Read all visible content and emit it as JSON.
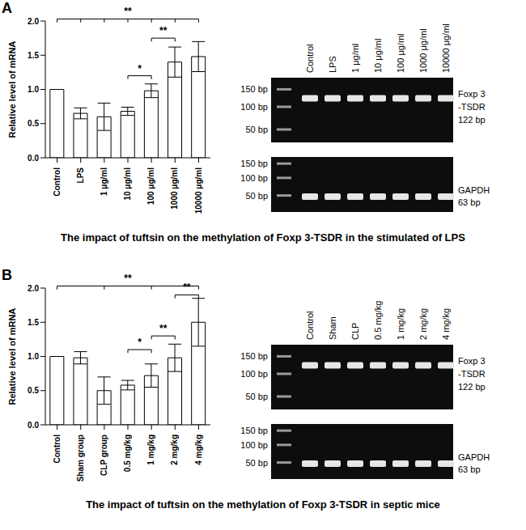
{
  "chart_data": [
    {
      "panel_label": "A",
      "type": "bar",
      "caption": "The impact of tuftsin on the methylation of Foxp 3-TSDR in the stimulated of LPS",
      "y_label": "Relative level of mRNA",
      "categories": [
        "Control",
        "LPS",
        "1 μg/ml",
        "10 μg/ml",
        "100 μg/ml",
        "1000 μg/ml",
        "10000 μg/ml"
      ],
      "values": [
        1.0,
        0.65,
        0.6,
        0.68,
        0.98,
        1.4,
        1.48
      ],
      "errors": [
        0,
        0.08,
        0.2,
        0.06,
        0.1,
        0.22,
        0.22
      ],
      "color": "#ffffff",
      "ylim": [
        0,
        2
      ],
      "yticks": [
        {
          "value": 0,
          "label": "0.0"
        },
        {
          "value": 0.5,
          "label": "0.5"
        },
        {
          "value": 1,
          "label": "1.0"
        },
        {
          "value": 1.5,
          "label": "1.5"
        },
        {
          "value": 2,
          "label": "2.0"
        }
      ],
      "significance": [
        {
          "from": "Control",
          "to": "10000 μg/ml",
          "y": 2.03,
          "label": "**",
          "legs": [
            "Control",
            "LPS",
            "1 μg/ml",
            "10 μg/ml",
            "100 μg/ml",
            "1000 μg/ml",
            "10000 μg/ml"
          ]
        },
        {
          "from": "10 μg/ml",
          "to": "100 μg/ml",
          "y": 1.2,
          "label": "*",
          "legs": [
            "10 μg/ml",
            "100 μg/ml"
          ]
        },
        {
          "from": "100 μg/ml",
          "to": "1000 μg/ml",
          "y": 1.75,
          "label": "**",
          "legs": [
            "100 μg/ml",
            "1000 μg/ml"
          ]
        }
      ],
      "gel": {
        "lanes": [
          "Control",
          "LPS",
          "1 μg/ml",
          "10 μg/ml",
          "100 μg/ml",
          "1000 μg/ml",
          "10000 μg/ml"
        ],
        "blots": [
          {
            "ladder": [
              "150 bp",
              "100 bp",
              "50 bp"
            ],
            "target": [
              "Foxp 3",
              "-TSDR",
              "122 bp"
            ]
          },
          {
            "ladder": [
              "150 bp",
              "100 bp",
              "50 bp"
            ],
            "target": [
              "GAPDH",
              "63 bp"
            ]
          }
        ]
      }
    },
    {
      "panel_label": "B",
      "type": "bar",
      "caption": "The impact of tuftsin on the methylation of Foxp 3-TSDR in septic mice",
      "y_label": "Relative level of mRNA",
      "categories": [
        "Control",
        "Sham group",
        "CLP group",
        "0.5 mg/kg",
        "1 mg/kg",
        "2 mg/kg",
        "4 mg/kg"
      ],
      "values": [
        1.0,
        0.98,
        0.5,
        0.58,
        0.72,
        0.98,
        1.5
      ],
      "errors": [
        0,
        0.09,
        0.2,
        0.07,
        0.17,
        0.2,
        0.35
      ],
      "color": "#ffffff",
      "ylim": [
        0,
        2
      ],
      "yticks": [
        {
          "value": 0,
          "label": "0.0"
        },
        {
          "value": 0.5,
          "label": "0.5"
        },
        {
          "value": 1,
          "label": "1.0"
        },
        {
          "value": 1.5,
          "label": "1.5"
        },
        {
          "value": 2,
          "label": "2.0"
        }
      ],
      "significance": [
        {
          "from": "Control",
          "to": "4 mg/kg",
          "y": 2.03,
          "label": "**",
          "legs": [
            "Control",
            "CLP group",
            "1 mg/kg",
            "4 mg/kg"
          ]
        },
        {
          "from": "0.5 mg/kg",
          "to": "1 mg/kg",
          "y": 1.1,
          "label": "*",
          "legs": [
            "0.5 mg/kg",
            "1 mg/kg"
          ]
        },
        {
          "from": "1 mg/kg",
          "to": "2 mg/kg",
          "y": 1.3,
          "label": "**",
          "legs": [
            "1 mg/kg",
            "2 mg/kg"
          ]
        },
        {
          "from": "2 mg/kg",
          "to": "4 mg/kg",
          "y": 1.9,
          "label": "**",
          "legs": [
            "2 mg/kg",
            "4 mg/kg"
          ]
        }
      ],
      "gel": {
        "lanes": [
          "Control",
          "Sham",
          "CLP",
          "0.5 mg/kg",
          "1 mg/kg",
          "2 mg/kg",
          "4 mg/kg"
        ],
        "blots": [
          {
            "ladder": [
              "150 bp",
              "100 bp",
              "50 bp"
            ],
            "target": [
              "Foxp 3",
              "-TSDR",
              "122 bp"
            ]
          },
          {
            "ladder": [
              "150 bp",
              "100 bp",
              "50 bp"
            ],
            "target": [
              "GAPDH",
              "63 bp"
            ]
          }
        ]
      }
    }
  ]
}
